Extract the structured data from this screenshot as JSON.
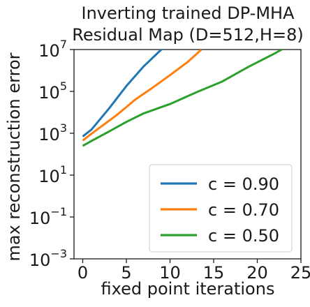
{
  "chart_data": {
    "type": "line",
    "title_line1": "Inverting trained DP-MHA",
    "title_line2": "Residual Map (D=512,H=8)",
    "xlabel": "fixed point iterations",
    "ylabel": "max reconstruction error",
    "xlim": [
      -1,
      25
    ],
    "ylim": [
      0.001,
      10000000
    ],
    "yscale": "log",
    "xticks": [
      0,
      5,
      10,
      15,
      20,
      25
    ],
    "xtick_labels": [
      "0",
      "5",
      "10",
      "15",
      "20",
      "25"
    ],
    "yticks": [
      0.001,
      0.1,
      10,
      1000,
      100000,
      10000000
    ],
    "ytick_labels": [
      {
        "base": "10",
        "exp": "−3"
      },
      {
        "base": "10",
        "exp": "−1"
      },
      {
        "base": "10",
        "exp": "1"
      },
      {
        "base": "10",
        "exp": "3"
      },
      {
        "base": "10",
        "exp": "5"
      },
      {
        "base": "10",
        "exp": "7"
      }
    ],
    "legend_position": "lower-right",
    "grid": false,
    "series": [
      {
        "name": "c = 0.90",
        "color": "#1f77b4",
        "x": [
          0,
          1,
          3,
          5,
          7,
          9,
          10.3
        ],
        "y": [
          700,
          1500,
          15000,
          180000,
          1600000,
          10000000,
          30000000
        ]
      },
      {
        "name": "c = 0.70",
        "color": "#ff7f0e",
        "x": [
          0,
          1,
          4,
          6,
          8,
          10,
          12,
          13.6
        ],
        "y": [
          450,
          950,
          8000,
          40000,
          150000,
          600000,
          2500000,
          10000000
        ]
      },
      {
        "name": "c = 0.50",
        "color": "#2ca02c",
        "x": [
          0,
          1,
          3,
          5,
          7,
          10,
          13,
          16,
          19,
          22,
          22.8
        ],
        "y": [
          250,
          430,
          1200,
          3500,
          9000,
          25000,
          90000,
          300000,
          1500000,
          6500000,
          10000000
        ]
      }
    ]
  }
}
